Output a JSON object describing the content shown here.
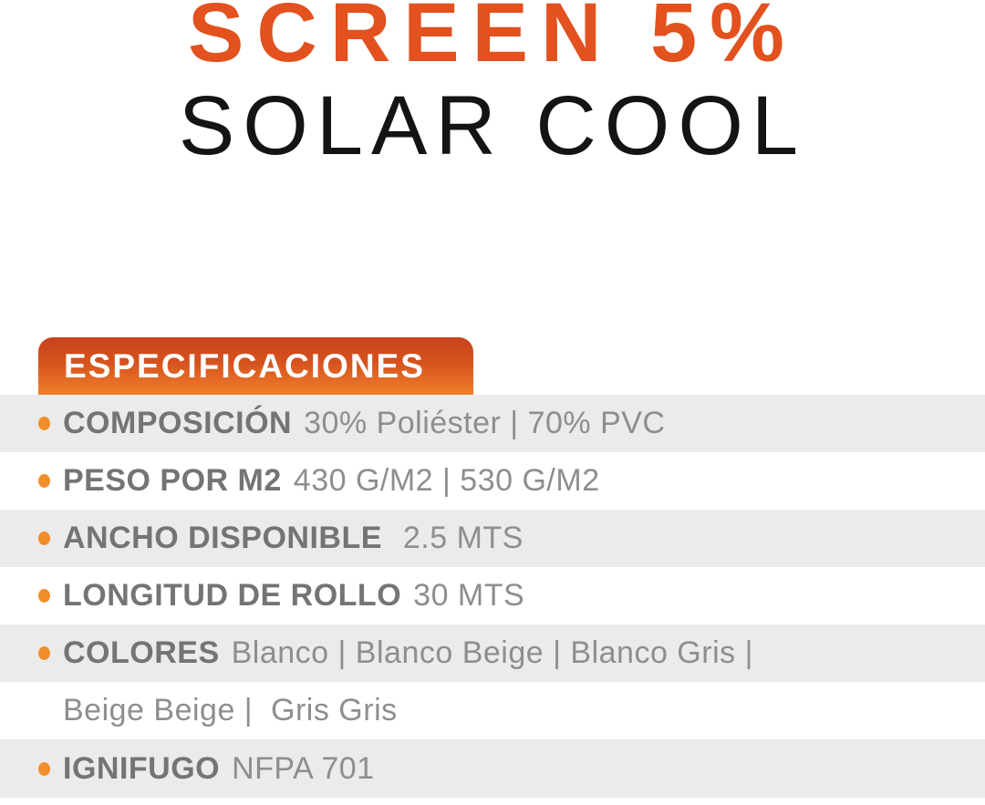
{
  "header": {
    "title_line1": "SCREEN 5%",
    "title_line2": "SOLAR COOL"
  },
  "badge": {
    "label": "ESPECIFICACIONES"
  },
  "specs": {
    "rows": [
      {
        "label": "COMPOSICIÓN",
        "value": "30% Poliéster | 70% PVC"
      },
      {
        "label": "PESO POR M2",
        "value": "430 G/M2 | 530 G/M2"
      },
      {
        "label": "ANCHO DISPONIBLE",
        "value": " 2.5 MTS"
      },
      {
        "label": "LONGITUD DE ROLLO",
        "value": "30 MTS"
      },
      {
        "label": "COLORES",
        "value": "Blanco | Blanco Beige | Blanco Gris |"
      },
      {
        "label": "",
        "value": "Beige Beige |  Gris Gris"
      },
      {
        "label": "IGNIFUGO",
        "value": "NFPA 701"
      }
    ]
  },
  "colors": {
    "title_orange": "#E2511E",
    "title_black": "#141414",
    "badge_gradient_top": "#C7431B",
    "badge_gradient_bottom": "#F0802B",
    "bullet_orange": "#F18E2B",
    "row_gray": "#EBEBEB",
    "label_gray": "#747477",
    "value_gray": "#8E8E91"
  }
}
